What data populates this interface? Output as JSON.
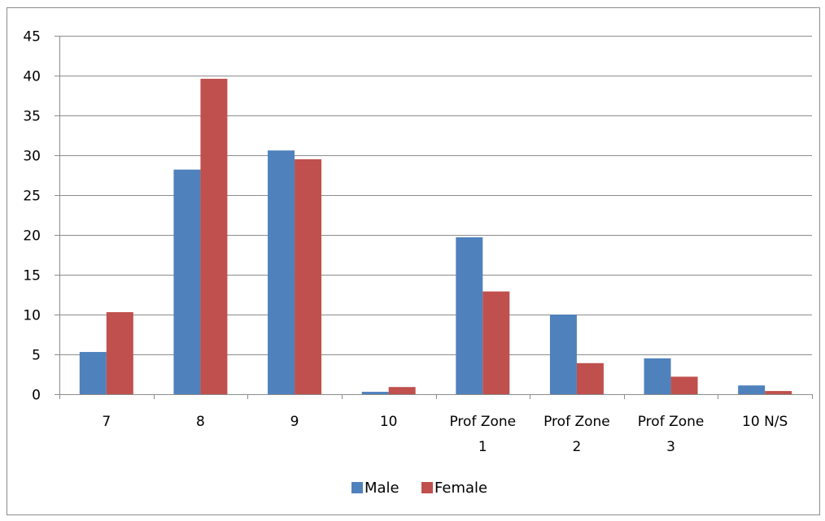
{
  "chart_data": {
    "type": "bar",
    "categories": [
      [
        "7"
      ],
      [
        "8"
      ],
      [
        "9"
      ],
      [
        "10"
      ],
      [
        "Prof Zone",
        "1"
      ],
      [
        "Prof Zone",
        "2"
      ],
      [
        "Prof Zone",
        "3"
      ],
      [
        "10 N/S"
      ]
    ],
    "series": [
      {
        "name": "Male",
        "color": "#4f81bd",
        "values": [
          5.3,
          28.2,
          30.6,
          0.3,
          19.7,
          10.0,
          4.5,
          1.1
        ]
      },
      {
        "name": "Female",
        "color": "#c0504d",
        "values": [
          10.3,
          39.6,
          29.5,
          0.9,
          12.9,
          3.9,
          2.2,
          0.4
        ]
      }
    ],
    "ylim": [
      0,
      45
    ],
    "yticks": [
      0,
      5,
      10,
      15,
      20,
      25,
      30,
      35,
      40,
      45
    ],
    "grid": true,
    "legend_position": "bottom",
    "title": "",
    "xlabel": "",
    "ylabel": ""
  }
}
